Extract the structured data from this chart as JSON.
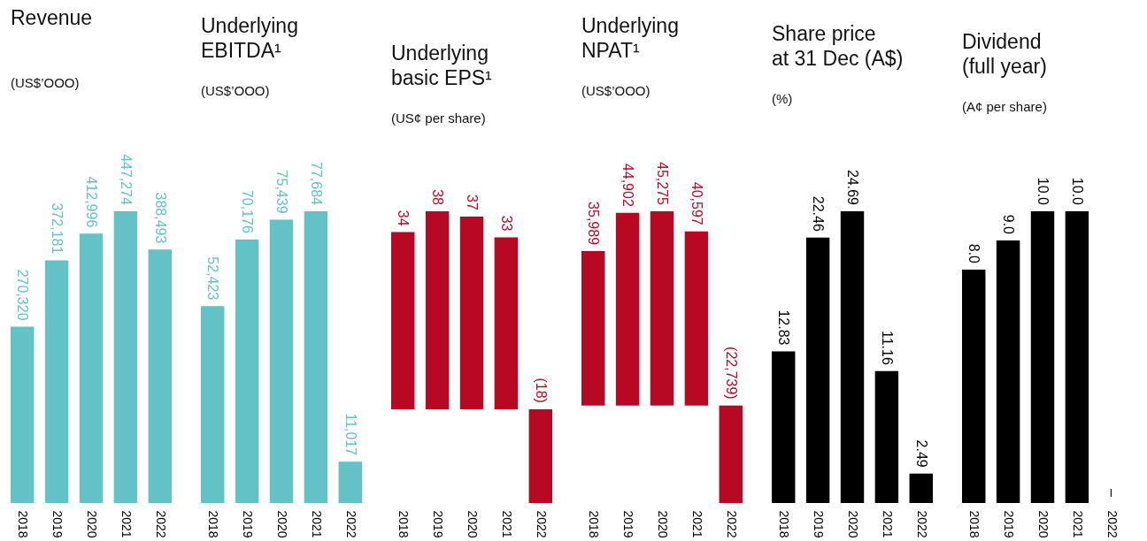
{
  "chart_data": [
    {
      "type": "bar",
      "title": "Revenue",
      "subtitle": "(US$’OOO)",
      "categories": [
        "2018",
        "2019",
        "2020",
        "2021",
        "2022"
      ],
      "values": [
        270320,
        372181,
        412996,
        447274,
        388493
      ],
      "value_labels": [
        "270,320",
        "372,181",
        "412,996",
        "447,274",
        "388,493"
      ],
      "color": "#62c2c6"
    },
    {
      "type": "bar",
      "title": "Underlying EBITDA¹",
      "subtitle": "(US$’OOO)",
      "categories": [
        "2018",
        "2019",
        "2020",
        "2021",
        "2022"
      ],
      "values": [
        52423,
        70176,
        75439,
        77684,
        11017
      ],
      "value_labels": [
        "52,423",
        "70,176",
        "75,439",
        "77,684",
        "11,017"
      ],
      "color": "#62c2c6"
    },
    {
      "type": "bar",
      "title": "Underlying basic EPS¹",
      "subtitle": "(US¢ per share)",
      "categories": [
        "2018",
        "2019",
        "2020",
        "2021",
        "2022"
      ],
      "values": [
        34,
        38,
        37,
        33,
        -18
      ],
      "value_labels": [
        "34",
        "38",
        "37",
        "33",
        "(18)"
      ],
      "color": "#b70923"
    },
    {
      "type": "bar",
      "title": "Underlying NPAT¹",
      "subtitle": "(US$’OOO)",
      "categories": [
        "2018",
        "2019",
        "2020",
        "2021",
        "2022"
      ],
      "values": [
        35989,
        44902,
        45275,
        40597,
        -22739
      ],
      "value_labels": [
        "35,989",
        "44,902",
        "45,275",
        "40,597",
        "(22,739)"
      ],
      "color": "#b70923"
    },
    {
      "type": "bar",
      "title": "Share price at 31 Dec (A$)",
      "subtitle": "(%)",
      "categories": [
        "2018",
        "2019",
        "2020",
        "2021",
        "2022"
      ],
      "values": [
        12.83,
        22.46,
        24.69,
        11.16,
        2.49
      ],
      "value_labels": [
        "12.83",
        "22.46",
        "24.69",
        "11.16",
        "2.49"
      ],
      "color": "#000000"
    },
    {
      "type": "bar",
      "title": "Dividend (full year)",
      "subtitle": "(A¢ per share)",
      "categories": [
        "2018",
        "2019",
        "2020",
        "2021",
        "2022"
      ],
      "values": [
        8.0,
        9.0,
        10.0,
        10.0,
        0
      ],
      "value_labels": [
        "8.0",
        "9.0",
        "10.0",
        "10.0",
        "–"
      ],
      "color": "#000000"
    }
  ]
}
